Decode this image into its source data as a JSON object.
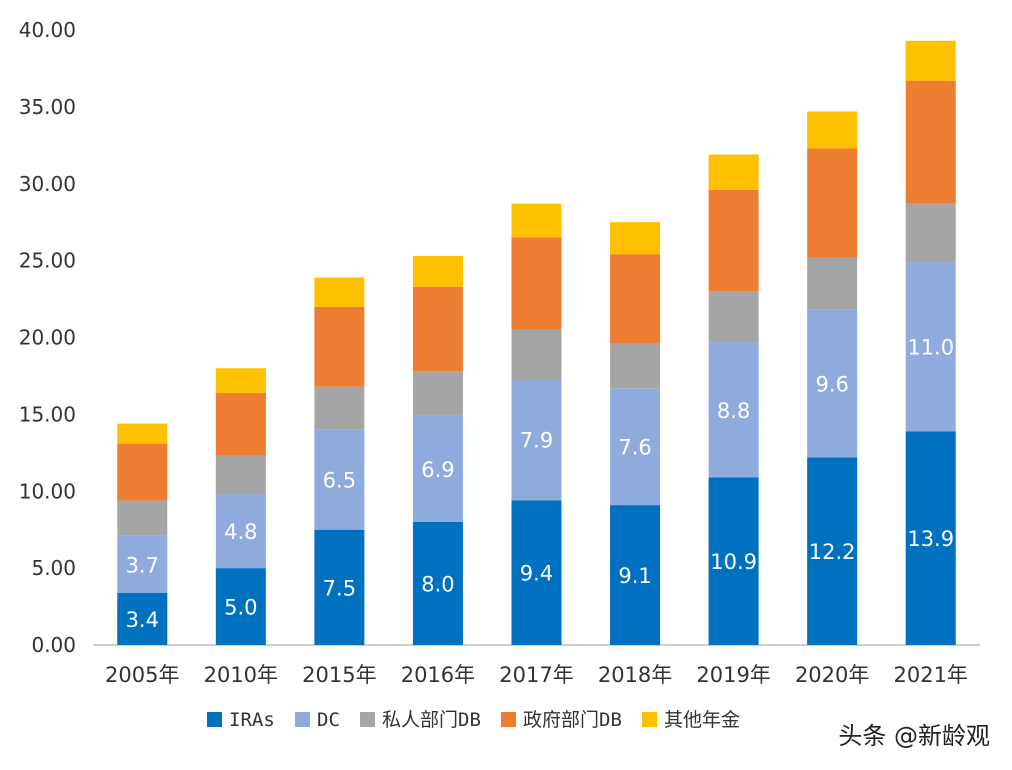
{
  "chart_data": {
    "type": "bar",
    "stacked": true,
    "categories": [
      "2005年",
      "2010年",
      "2015年",
      "2016年",
      "2017年",
      "2018年",
      "2019年",
      "2020年",
      "2021年"
    ],
    "ylim": [
      0,
      40
    ],
    "yticks": [
      "0.00",
      "5.00",
      "10.00",
      "15.00",
      "20.00",
      "25.00",
      "30.00",
      "35.00",
      "40.00"
    ],
    "grid": false,
    "legend_position": "bottom",
    "series": [
      {
        "name": "IRAs",
        "color": "#0070C0",
        "label_color": "#ffffff",
        "values": [
          3.4,
          5.0,
          7.5,
          8.0,
          9.4,
          9.1,
          10.9,
          12.2,
          13.9
        ],
        "labels": [
          "3.4",
          "5.0",
          "7.5",
          "8.0",
          "9.4",
          "9.1",
          "10.9",
          "12.2",
          "13.9"
        ]
      },
      {
        "name": "DC",
        "color": "#8FAADC",
        "label_color": "#ffffff",
        "values": [
          3.7,
          4.8,
          6.5,
          6.9,
          7.9,
          7.6,
          8.8,
          9.6,
          11.0
        ],
        "labels": [
          "3.7",
          "4.8",
          "6.5",
          "6.9",
          "7.9",
          "7.6",
          "8.8",
          "9.6",
          "11.0"
        ]
      },
      {
        "name": "私人部门DB",
        "color": "#A5A5A5",
        "values": [
          2.3,
          2.5,
          2.8,
          2.9,
          3.2,
          2.9,
          3.3,
          3.4,
          3.8
        ]
      },
      {
        "name": "政府部门DB",
        "color": "#ED7D31",
        "values": [
          3.7,
          4.1,
          5.2,
          5.5,
          6.0,
          5.8,
          6.6,
          7.1,
          8.0
        ]
      },
      {
        "name": "其他年金",
        "color": "#FFC000",
        "values": [
          1.3,
          1.6,
          1.9,
          2.0,
          2.2,
          2.1,
          2.3,
          2.4,
          2.6
        ]
      }
    ]
  },
  "watermark": "头条 @新龄观"
}
